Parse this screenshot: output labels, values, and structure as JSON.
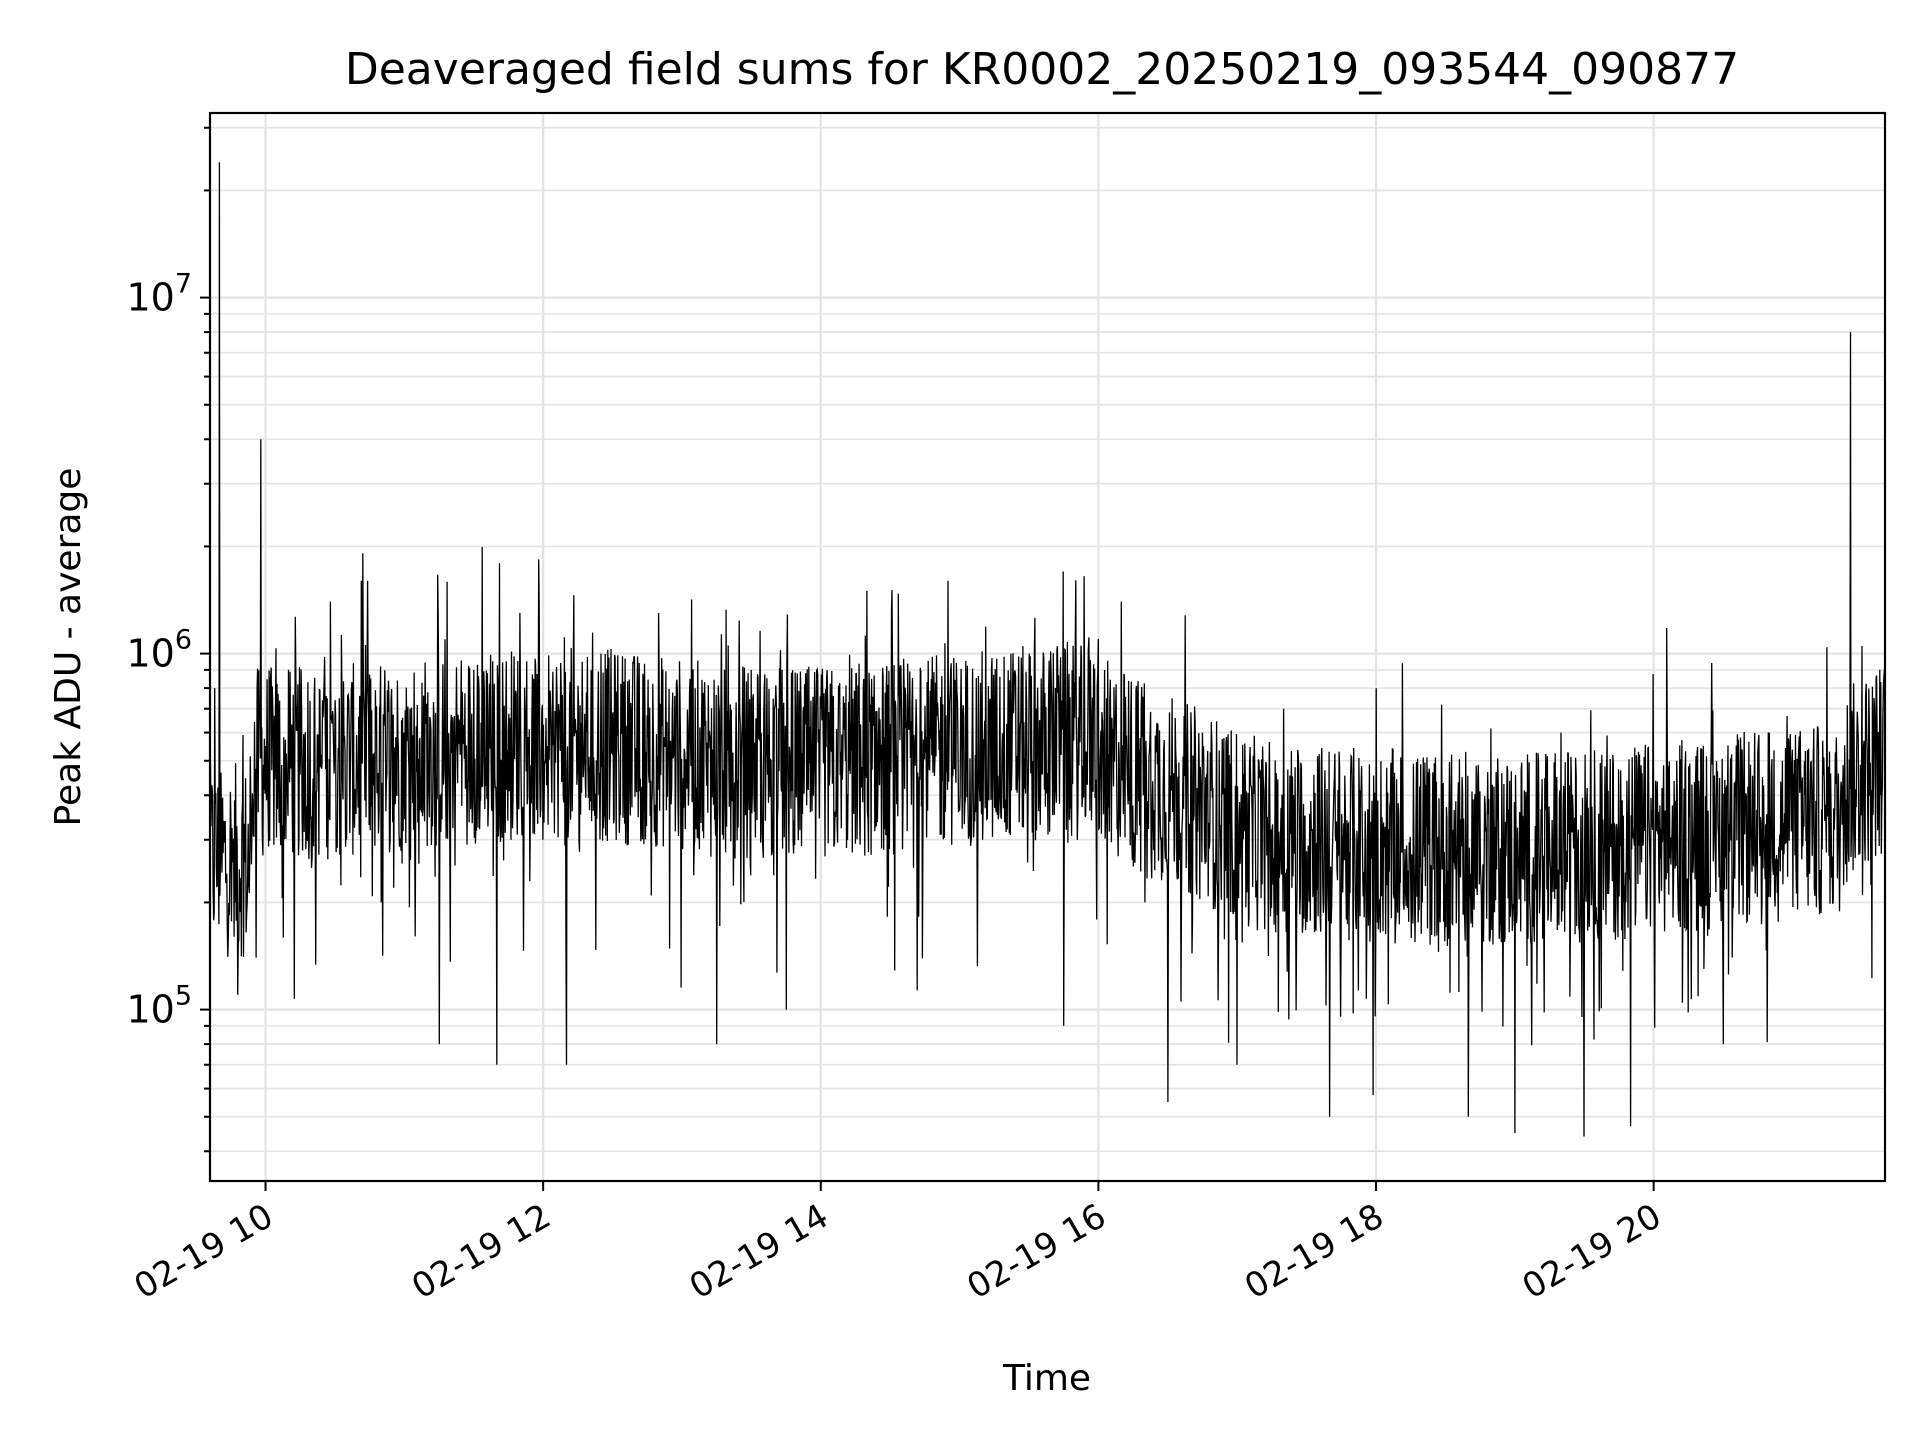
{
  "chart_data": {
    "type": "line",
    "title": "Deaveraged field sums for KR0002_20250219_093544_090877",
    "xlabel": "Time",
    "ylabel": "Peak ADU - average",
    "yscale": "log",
    "grid": true,
    "line_color": "#000000",
    "xlim": [
      "2025-02-19 09:36",
      "2025-02-19 21:40"
    ],
    "ylim": [
      33000,
      33000000
    ],
    "x_ticks": [
      {
        "value": "2025-02-19 10:00",
        "label": "02-19 10"
      },
      {
        "value": "2025-02-19 12:00",
        "label": "02-19 12"
      },
      {
        "value": "2025-02-19 14:00",
        "label": "02-19 14"
      },
      {
        "value": "2025-02-19 16:00",
        "label": "02-19 16"
      },
      {
        "value": "2025-02-19 18:00",
        "label": "02-19 18"
      },
      {
        "value": "2025-02-19 20:00",
        "label": "02-19 20"
      }
    ],
    "y_ticks": [
      {
        "value": 100000,
        "label_base": "10",
        "label_exp": "5"
      },
      {
        "value": 1000000,
        "label_base": "10",
        "label_exp": "6"
      },
      {
        "value": 10000000,
        "label_base": "10",
        "label_exp": "7"
      }
    ],
    "series": [
      {
        "points": [
          [
            "2025-02-19 09:37",
            420000
          ],
          [
            "2025-02-19 09:38",
            800000
          ],
          [
            "2025-02-19 09:40",
            24000000
          ],
          [
            "2025-02-19 09:41",
            300000
          ],
          [
            "2025-02-19 09:44",
            160000
          ],
          [
            "2025-02-19 09:48",
            110000
          ],
          [
            "2025-02-19 09:52",
            200000
          ],
          [
            "2025-02-19 09:56",
            140000
          ],
          [
            "2025-02-19 09:58",
            4000000
          ],
          [
            "2025-02-19 10:00",
            550000
          ],
          [
            "2025-02-19 10:10",
            900000
          ],
          [
            "2025-02-19 10:20",
            250000
          ],
          [
            "2025-02-19 10:28",
            1400000
          ],
          [
            "2025-02-19 10:35",
            300000
          ],
          [
            "2025-02-19 10:44",
            1600000
          ],
          [
            "2025-02-19 10:50",
            200000
          ],
          [
            "2025-02-19 11:00",
            600000
          ],
          [
            "2025-02-19 11:15",
            80000
          ],
          [
            "2025-02-19 11:30",
            900000
          ],
          [
            "2025-02-19 11:40",
            70000
          ],
          [
            "2025-02-19 11:50",
            1300000
          ],
          [
            "2025-02-19 12:00",
            300000
          ],
          [
            "2025-02-19 12:10",
            70000
          ],
          [
            "2025-02-19 12:25",
            1000000
          ],
          [
            "2025-02-19 12:50",
            1300000
          ],
          [
            "2025-02-19 13:00",
            300000
          ],
          [
            "2025-02-19 13:15",
            80000
          ],
          [
            "2025-02-19 13:30",
            900000
          ],
          [
            "2025-02-19 13:45",
            100000
          ],
          [
            "2025-02-19 14:00",
            700000
          ],
          [
            "2025-02-19 14:20",
            1500000
          ],
          [
            "2025-02-19 14:40",
            250000
          ],
          [
            "2025-02-19 14:55",
            1600000
          ],
          [
            "2025-02-19 15:10",
            300000
          ],
          [
            "2025-02-19 15:30",
            1000000
          ],
          [
            "2025-02-19 15:45",
            90000
          ],
          [
            "2025-02-19 16:00",
            1100000
          ],
          [
            "2025-02-19 16:10",
            1400000
          ],
          [
            "2025-02-19 16:20",
            200000
          ],
          [
            "2025-02-19 16:30",
            55000
          ],
          [
            "2025-02-19 16:45",
            600000
          ],
          [
            "2025-02-19 17:00",
            70000
          ],
          [
            "2025-02-19 17:20",
            700000
          ],
          [
            "2025-02-19 17:40",
            50000
          ],
          [
            "2025-02-19 18:00",
            800000
          ],
          [
            "2025-02-19 18:20",
            200000
          ],
          [
            "2025-02-19 18:40",
            50000
          ],
          [
            "2025-02-19 19:00",
            45000
          ],
          [
            "2025-02-19 19:20",
            600000
          ],
          [
            "2025-02-19 19:30",
            44000
          ],
          [
            "2025-02-19 19:50",
            47000
          ],
          [
            "2025-02-19 20:10",
            500000
          ],
          [
            "2025-02-19 20:30",
            80000
          ],
          [
            "2025-02-19 20:50",
            600000
          ],
          [
            "2025-02-19 21:10",
            300000
          ],
          [
            "2025-02-19 21:25",
            8000000
          ],
          [
            "2025-02-19 21:30",
            1050000
          ],
          [
            "2025-02-19 21:38",
            400000
          ]
        ]
      }
    ]
  }
}
